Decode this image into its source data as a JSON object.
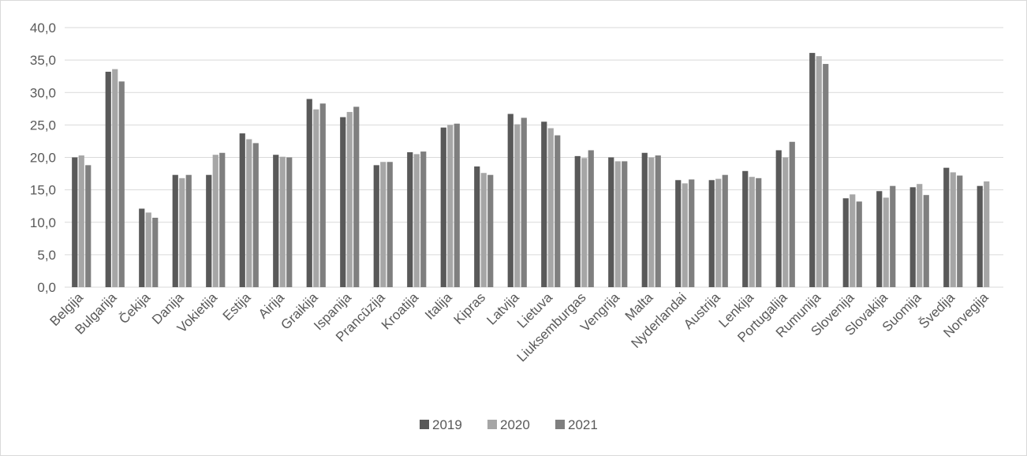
{
  "chart_data": {
    "type": "bar",
    "categories": [
      "Belgija",
      "Bulgarija",
      "Čekija",
      "Danija",
      "Vokietija",
      "Estija",
      "Airija",
      "Graikija",
      "Ispanija",
      "Prancūzija",
      "Kroatija",
      "Italija",
      "Kipras",
      "Latvija",
      "Lietuva",
      "Liuksemburgas",
      "Vengrija",
      "Malta",
      "Nyderlandai",
      "Austrija",
      "Lenkija",
      "Portugalija",
      "Rumunija",
      "Slovenija",
      "Slovakija",
      "Suomija",
      "Švedija",
      "Norvegija"
    ],
    "series": [
      {
        "name": "2019",
        "color": "#595959",
        "values": [
          20.0,
          33.2,
          12.1,
          17.3,
          17.3,
          23.7,
          20.4,
          29.0,
          26.2,
          18.8,
          20.8,
          24.6,
          18.6,
          26.7,
          25.5,
          20.2,
          20.0,
          20.7,
          16.5,
          16.5,
          17.9,
          21.1,
          36.1,
          13.7,
          14.8,
          15.4,
          18.4,
          15.6
        ]
      },
      {
        "name": "2020",
        "color": "#a6a6a6",
        "values": [
          20.3,
          33.6,
          11.5,
          16.8,
          20.4,
          22.8,
          20.1,
          27.4,
          27.0,
          19.3,
          20.5,
          25.0,
          17.6,
          25.1,
          24.5,
          19.9,
          19.4,
          20.0,
          16.0,
          16.7,
          17.0,
          20.0,
          35.6,
          14.3,
          13.8,
          15.9,
          17.7,
          16.3
        ]
      },
      {
        "name": "2021",
        "color": "#7f7f7f",
        "values": [
          18.8,
          31.7,
          10.7,
          17.3,
          20.7,
          22.2,
          20.0,
          28.3,
          27.8,
          19.3,
          20.9,
          25.2,
          17.3,
          26.1,
          23.4,
          21.1,
          19.4,
          20.3,
          16.6,
          17.3,
          16.8,
          22.4,
          34.4,
          13.2,
          15.6,
          14.2,
          17.2,
          null
        ]
      }
    ],
    "y_ticks": [
      "0,0",
      "5,0",
      "10,0",
      "15,0",
      "20,0",
      "25,0",
      "30,0",
      "35,0",
      "40,0"
    ],
    "ylim": [
      0,
      40
    ],
    "grid": true,
    "legend_position": "bottom",
    "title": "",
    "xlabel": "",
    "ylabel": ""
  }
}
